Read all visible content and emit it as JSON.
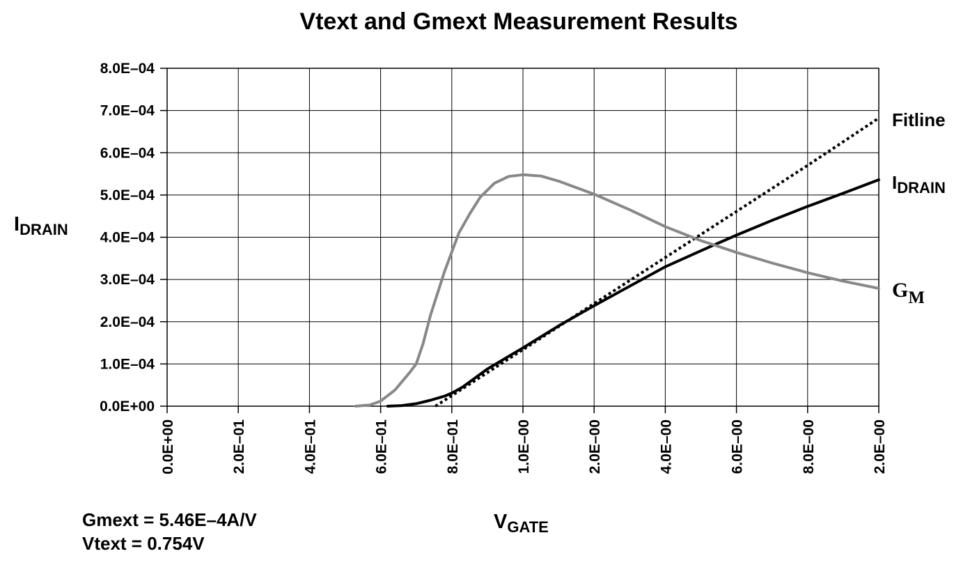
{
  "chart_data": {
    "type": "line",
    "title": "Vtext and Gmext Measurement Results",
    "ylabel_main": "I",
    "ylabel_sub": "DRAIN",
    "xlabel_main": "V",
    "xlabel_sub": "GATE",
    "ylim": [
      0,
      0.0008
    ],
    "y_ticks": [
      "0.0E+00",
      "1.0E–04",
      "2.0E–04",
      "3.0E–04",
      "4.0E–04",
      "5.0E–04",
      "6.0E–04",
      "7.0E–04",
      "8.0E–04"
    ],
    "x_ticks": [
      "0.0E+00",
      "2.0E–01",
      "4.0E–01",
      "6.0E–01",
      "8.0E–01",
      "1.0E–00",
      "2.0E–00",
      "4.0E–00",
      "6.0E–00",
      "8.0E–00",
      "2.0E–00"
    ],
    "grid": true,
    "series": [
      {
        "name": "Fitline",
        "style": "dotted",
        "color": "#000000",
        "points": [
          [
            0.754,
            0
          ],
          [
            0.8,
            2.5e-05
          ],
          [
            1.0,
            0.000134
          ],
          [
            1.2,
            0.000243
          ],
          [
            1.4,
            0.000352
          ],
          [
            1.6,
            0.000461
          ],
          [
            1.8,
            0.00057
          ],
          [
            2.0,
            0.000682
          ]
        ]
      },
      {
        "name": "I",
        "name_sub": "DRAIN",
        "style": "solid",
        "color": "#000000",
        "points": [
          [
            0.62,
            0
          ],
          [
            0.66,
            1.5e-06
          ],
          [
            0.7,
            6e-06
          ],
          [
            0.74,
            1.4e-05
          ],
          [
            0.78,
            2.4e-05
          ],
          [
            0.8,
            3.1e-05
          ],
          [
            0.83,
            4.5e-05
          ],
          [
            0.9,
            8.8e-05
          ],
          [
            1.0,
            0.000138
          ],
          [
            1.1,
            0.00019
          ],
          [
            1.2,
            0.000238
          ],
          [
            1.3,
            0.000284
          ],
          [
            1.4,
            0.00033
          ],
          [
            1.5,
            0.000368
          ],
          [
            1.6,
            0.000405
          ],
          [
            1.7,
            0.00044
          ],
          [
            1.8,
            0.000473
          ],
          [
            1.9,
            0.000504
          ],
          [
            2.0,
            0.000536
          ]
        ]
      },
      {
        "name": "G",
        "name_sub": "M",
        "style": "solid",
        "color": "#888888",
        "points": [
          [
            0.53,
            0
          ],
          [
            0.57,
            3e-06
          ],
          [
            0.6,
            1.2e-05
          ],
          [
            0.64,
            3.8e-05
          ],
          [
            0.68,
            7.8e-05
          ],
          [
            0.7,
            0.0001
          ],
          [
            0.72,
            0.00015
          ],
          [
            0.74,
            0.000215
          ],
          [
            0.78,
            0.00032
          ],
          [
            0.82,
            0.00041
          ],
          [
            0.85,
            0.000455
          ],
          [
            0.88,
            0.000495
          ],
          [
            0.92,
            0.000528
          ],
          [
            0.96,
            0.000544
          ],
          [
            1.0,
            0.000548
          ],
          [
            1.05,
            0.000545
          ],
          [
            1.1,
            0.000533
          ],
          [
            1.2,
            0.000502
          ],
          [
            1.3,
            0.000465
          ],
          [
            1.4,
            0.000425
          ],
          [
            1.5,
            0.000392
          ],
          [
            1.6,
            0.000364
          ],
          [
            1.7,
            0.000339
          ],
          [
            1.8,
            0.000316
          ],
          [
            1.9,
            0.000296
          ],
          [
            2.0,
            0.000279
          ]
        ]
      }
    ],
    "annotations": [
      "Gmext = 5.46E–4A/V",
      "Vtext = 0.754V"
    ]
  }
}
